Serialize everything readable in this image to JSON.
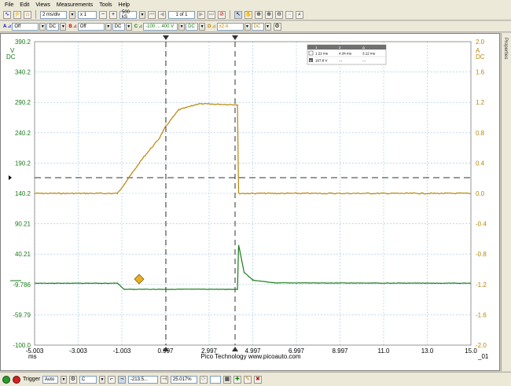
{
  "menu": [
    "File",
    "Edit",
    "Views",
    "Measurements",
    "Tools",
    "Help"
  ],
  "toolbar1": {
    "timebase": "2 ms/div",
    "zoom": "x 1",
    "samples": "500 kS",
    "buffer": "1 of 1"
  },
  "toolbar2": {
    "channel_a": {
      "label": "A",
      "range": "Off",
      "coupling": "DC"
    },
    "channel_b": {
      "label": "B",
      "range": "Off",
      "coupling": "DC"
    },
    "channel_c": {
      "label": "C",
      "range": "-100 ... 400 V",
      "coupling": "DC"
    },
    "channel_d": {
      "label": "D",
      "range": "±2 A",
      "coupling": "DC"
    }
  },
  "scope": {
    "left_unit": "V",
    "left_unit2": "DC",
    "right_unit": "A",
    "right_unit2": "DC",
    "left_ticks": [
      "390.2",
      "340.2",
      "290.2",
      "240.2",
      "190.2",
      "140.2",
      "90.21",
      "40.21",
      "-9.786",
      "-59.79",
      "-100.0"
    ],
    "right_ticks": [
      "2.0",
      "1.6",
      "1.2",
      "0.8",
      "0.4",
      "0.0",
      "-0.4",
      "-0.8",
      "-1.2",
      "-1.6",
      "-2.0"
    ],
    "x_ticks": [
      "-5.003",
      "-3.003",
      "-1.003",
      "0.997",
      "2.997",
      "4.997",
      "6.997",
      "8.997",
      "11.0",
      "13.0",
      "15.0"
    ],
    "x_unit": "ms",
    "x_suffix": "_01",
    "footer": "Pico Technology   www.picoauto.com",
    "colors": {
      "voltage": "#1a7a1a",
      "current": "#b8860b"
    }
  },
  "rulers_table": {
    "headers": [
      "",
      "1",
      "2",
      "Δ"
    ],
    "rows": [
      {
        "ch": "",
        "v1": "1.22 ms",
        "v2": "4.34 ms",
        "d": "3.12 ms"
      },
      {
        "ch": "B",
        "v1": "167.8 V",
        "v2": "-.-",
        "d": "-.-"
      }
    ]
  },
  "properties_label": "Properties",
  "status": {
    "trigger_label": "Trigger",
    "trigger_mode": "Auto",
    "trigger_source": "C",
    "trigger_level": "-213.5...",
    "pre_trigger": "25.017%"
  },
  "chart_data": {
    "type": "line",
    "x_unit": "ms",
    "xlim": [
      -5.003,
      15.0
    ],
    "series": [
      {
        "axis": "right",
        "unit": "A",
        "x": [
          -5.0,
          -1.2,
          0.0,
          0.7,
          1.0,
          1.6,
          2.5,
          4.3,
          4.35,
          15.0
        ],
        "y": [
          0.0,
          0.0,
          0.48,
          0.72,
          0.88,
          1.1,
          1.18,
          1.17,
          0.0,
          0.0
        ]
      },
      {
        "axis": "left",
        "unit": "V",
        "x": [
          -5.0,
          -1.2,
          -0.9,
          4.3,
          4.35,
          4.6,
          5.0,
          6.0,
          15.0
        ],
        "y": [
          0.0,
          0.0,
          -9.8,
          -9.8,
          62.0,
          18.0,
          5.0,
          0.5,
          0.0
        ]
      }
    ],
    "ylim_left": [
      -100.0,
      390.2
    ],
    "ylim_right": [
      -2.0,
      2.0
    ]
  }
}
